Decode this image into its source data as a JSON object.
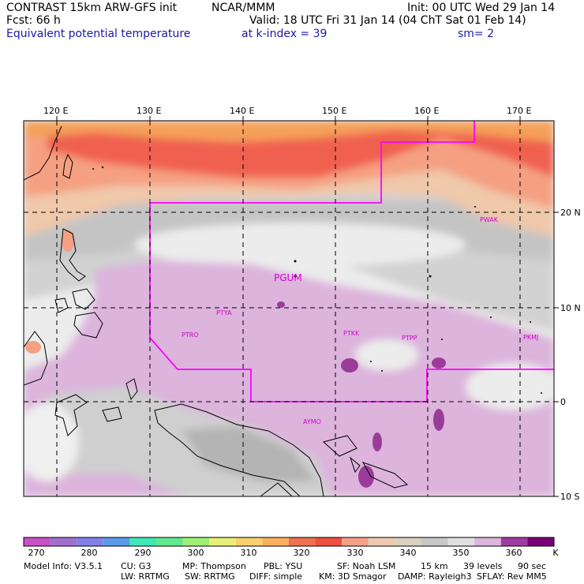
{
  "header": {
    "line1_left": "CONTRAST 15km ARW-GFS init",
    "line1_center": "NCAR/MMM",
    "line1_right": "Init: 00 UTC Wed 29 Jan 14",
    "line2_left": "Fcst:   66 h",
    "line2_right": "Valid: 18 UTC Fri 31 Jan 14 (04 ChT Sat 01 Feb 14)",
    "line3_left": "Equivalent potential temperature",
    "line3_center": "at k-index =  39",
    "line3_right": "sm= 2"
  },
  "map": {
    "lon_labels": [
      "120 E",
      "130 E",
      "140 E",
      "150 E",
      "160 E",
      "170 E"
    ],
    "lat_labels": [
      "20 N",
      "10 N",
      "0",
      "10 S"
    ],
    "stations": [
      "PGUM",
      "PTYA",
      "PTRO",
      "PTKK",
      "PTPP",
      "PKMJ",
      "PWAK",
      "AYMO"
    ],
    "field_colors": {
      "pale_purple": "#dcb4dc",
      "light_grey": "#ececec",
      "grey": "#cccccc",
      "dark_grey": "#b4b4b4",
      "tan": "#f0c8aa",
      "salmon": "#f5a082",
      "red": "#f06050",
      "orange": "#f5a05a",
      "dark_purple": "#9b3c9b",
      "domain_line": "#ff00ff"
    }
  },
  "colorbar": {
    "labels": [
      "270",
      "280",
      "290",
      "300",
      "310",
      "320",
      "330",
      "340",
      "350",
      "360"
    ],
    "unit": "K",
    "colors": [
      "#c850c8",
      "#a070d0",
      "#8080e8",
      "#5a9ae8",
      "#40e8b8",
      "#60e890",
      "#a0f078",
      "#e8f078",
      "#f8d070",
      "#f8b060",
      "#f07050",
      "#f05040",
      "#f5a088",
      "#f0c8b0",
      "#dcd0c0",
      "#c8c8c8",
      "#e0e0e0",
      "#dcb4dc",
      "#a03ca0",
      "#780078"
    ]
  },
  "footer": {
    "line1": [
      "Model Info: V3.5.1",
      "CU: G3",
      "MP: Thompson",
      "PBL: YSU",
      "SF: Noah LSM",
      "15 km",
      "39 levels",
      "90 sec"
    ],
    "line2": [
      "LW: RRTMG",
      "SW: RRTMG",
      "DIFF: simple",
      "KM: 3D Smagor",
      "DAMP: Rayleigh3",
      "SFLAY: Rev MM5"
    ]
  }
}
